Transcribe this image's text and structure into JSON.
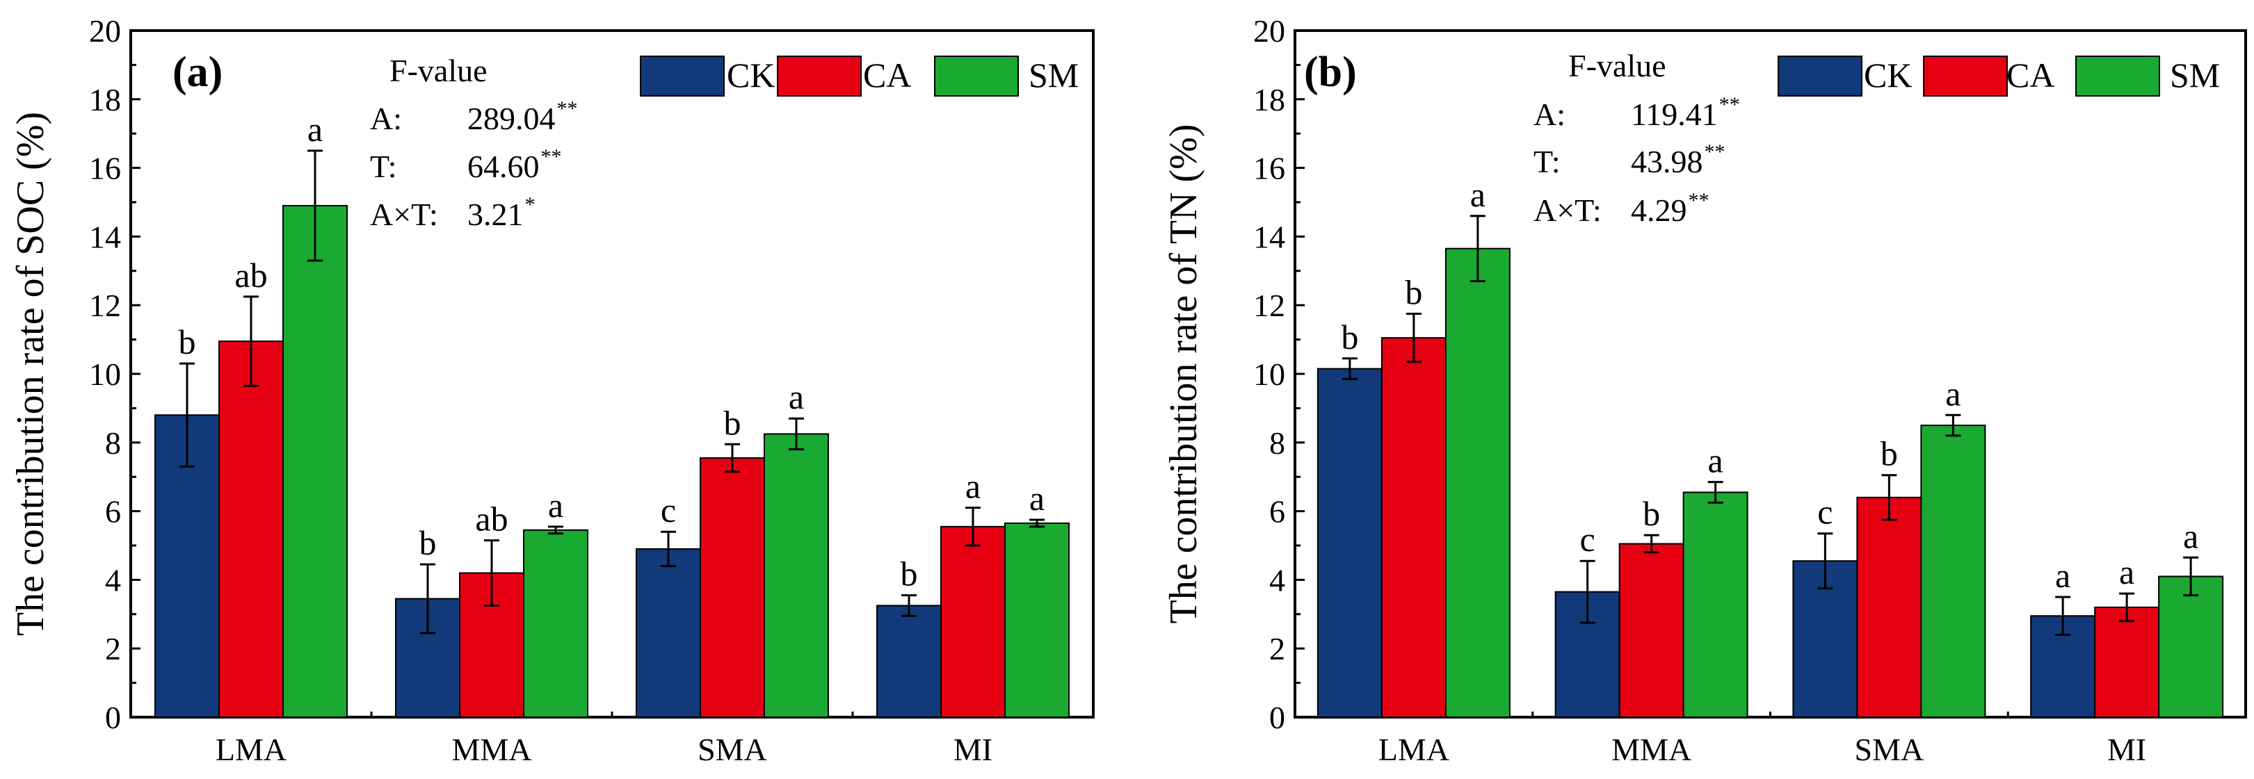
{
  "chart_data": [
    {
      "type": "bar",
      "panel_label": "(a)",
      "ylabel": "The contribution rate of SOC (%)",
      "ylim": [
        0,
        20
      ],
      "yticks": [
        "0",
        "2",
        "4",
        "6",
        "8",
        "10",
        "12",
        "14",
        "16",
        "18",
        "20"
      ],
      "categories": [
        "LMA",
        "MMA",
        "SMA",
        "MI"
      ],
      "series": [
        {
          "name": "CK",
          "color": "#123a7a",
          "values": [
            8.8,
            3.45,
            4.9,
            3.25
          ],
          "errors": [
            1.5,
            1.0,
            0.5,
            0.3
          ],
          "letters": [
            "b",
            "b",
            "c",
            "b"
          ]
        },
        {
          "name": "CA",
          "color": "#e60012",
          "values": [
            10.95,
            4.2,
            7.55,
            5.55
          ],
          "errors": [
            1.3,
            0.95,
            0.4,
            0.55
          ],
          "letters": [
            "ab",
            "ab",
            "b",
            "a"
          ]
        },
        {
          "name": "SM",
          "color": "#1aaa32",
          "values": [
            14.9,
            5.45,
            8.25,
            5.65
          ],
          "errors": [
            1.6,
            0.1,
            0.45,
            0.1
          ],
          "letters": [
            "a",
            "a",
            "a",
            "a"
          ]
        }
      ],
      "stats": {
        "title": "F-value",
        "rows": [
          {
            "label": "A:",
            "value": "289.04",
            "sig": "**"
          },
          {
            "label": "T:",
            "value": "64.60",
            "sig": "**"
          },
          {
            "label": "A×T:",
            "value": "3.21",
            "sig": "*"
          }
        ]
      }
    },
    {
      "type": "bar",
      "panel_label": "(b)",
      "ylabel": "The contribution rate of TN (%)",
      "ylim": [
        0,
        20
      ],
      "yticks": [
        "0",
        "2",
        "4",
        "6",
        "8",
        "10",
        "12",
        "14",
        "16",
        "18",
        "20"
      ],
      "categories": [
        "LMA",
        "MMA",
        "SMA",
        "MI"
      ],
      "series": [
        {
          "name": "CK",
          "color": "#123a7a",
          "values": [
            10.15,
            3.65,
            4.55,
            2.95
          ],
          "errors": [
            0.3,
            0.9,
            0.8,
            0.55
          ],
          "letters": [
            "b",
            "c",
            "c",
            "a"
          ]
        },
        {
          "name": "CA",
          "color": "#e60012",
          "values": [
            11.05,
            5.05,
            6.4,
            3.2
          ],
          "errors": [
            0.7,
            0.25,
            0.65,
            0.4
          ],
          "letters": [
            "b",
            "b",
            "b",
            "a"
          ]
        },
        {
          "name": "SM",
          "color": "#1aaa32",
          "values": [
            13.65,
            6.55,
            8.5,
            4.1
          ],
          "errors": [
            0.95,
            0.3,
            0.3,
            0.55
          ],
          "letters": [
            "a",
            "a",
            "a",
            "a"
          ]
        }
      ],
      "stats": {
        "title": "F-value",
        "rows": [
          {
            "label": "A:",
            "value": "119.41",
            "sig": "**"
          },
          {
            "label": "T:",
            "value": "43.98",
            "sig": "**"
          },
          {
            "label": "A×T:",
            "value": "4.29",
            "sig": "**"
          }
        ]
      }
    }
  ]
}
